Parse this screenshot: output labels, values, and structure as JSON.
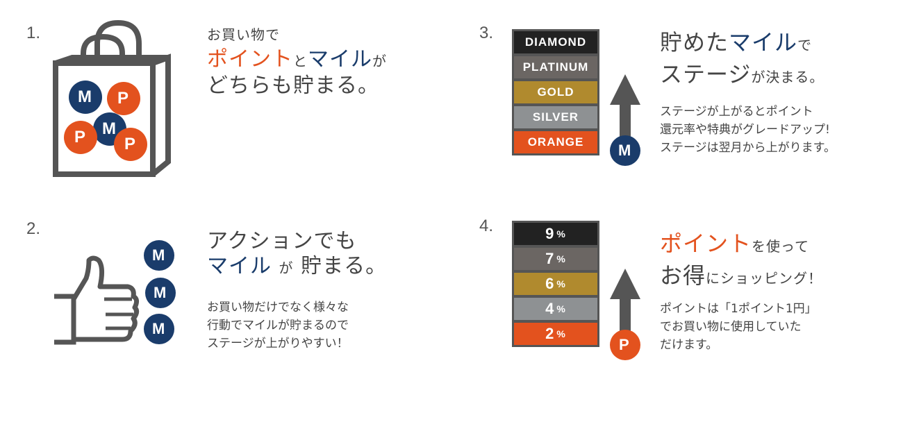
{
  "item1": {
    "number": "1.",
    "line1": "お買い物で",
    "line2_point": "ポイント",
    "line2_to": "と",
    "line2_mile": "マイル",
    "line2_ga": "が",
    "line3": "どちらも貯まる。",
    "coin_m": "M",
    "coin_p": "P"
  },
  "item2": {
    "number": "2.",
    "line1": "アクションでも",
    "line2_mile": "マイル",
    "line2_ga": "が",
    "line2_rest": "貯まる。",
    "desc1": "お買い物だけでなく様々な",
    "desc2": "行動でマイルが貯まるので",
    "desc3": "ステージが上がりやすい！",
    "coin_m": "M"
  },
  "item3": {
    "number": "3.",
    "line1_a": "貯めた",
    "line1_mile": "マイル",
    "line1_b": "で",
    "line2_a": "ステージ",
    "line2_b": "が決まる。",
    "desc1": "ステージが上がるとポイント",
    "desc2": "還元率や特典がグレードアップ!",
    "desc3": "ステージは翌月から上がります。",
    "coin": "M",
    "stages": [
      "DIAMOND",
      "PLATINUM",
      "GOLD",
      "SILVER",
      "ORANGE"
    ],
    "stage_colors": [
      "#222222",
      "#6B6663",
      "#B08A2E",
      "#8E9193",
      "#E3521E"
    ]
  },
  "item4": {
    "number": "4.",
    "line1_point": "ポイント",
    "line1_rest": "を使って",
    "line2_a": "お得",
    "line2_b": "にショッピング！",
    "desc1": "ポイントは「1ポイント1円」",
    "desc2": "でお買い物に使用していた",
    "desc3": "だけます。",
    "coin": "P",
    "rates": [
      "9",
      "7",
      "6",
      "4",
      "2"
    ],
    "rate_unit": "%",
    "rate_colors": [
      "#222222",
      "#6B6663",
      "#B08A2E",
      "#8E9193",
      "#E3521E"
    ]
  },
  "colors": {
    "orange": "#E3521E",
    "navy": "#1A3C6B",
    "gray": "#555555"
  }
}
